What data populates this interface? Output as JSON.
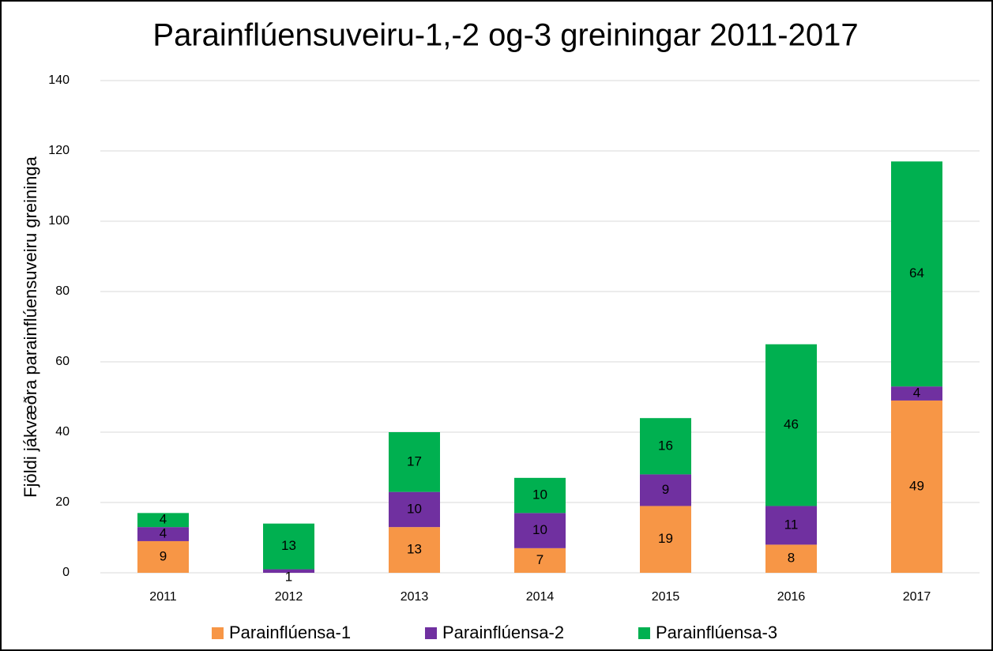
{
  "chart_data": {
    "type": "stacked_bar",
    "title": "Parainflúensuveiru-1,-2 og-3 greiningar 2011-2017",
    "y_label": "Fjöldi jákvæðra parainflúensuveiru greininga",
    "categories": [
      "2011",
      "2012",
      "2013",
      "2014",
      "2015",
      "2016",
      "2017"
    ],
    "series": [
      {
        "name": "Parainflúensa-1",
        "color": "#f79646",
        "values": [
          9,
          null,
          13,
          7,
          19,
          8,
          49
        ]
      },
      {
        "name": "Parainflúensa-2",
        "color": "#7030a0",
        "values": [
          4,
          1,
          10,
          10,
          9,
          11,
          4
        ]
      },
      {
        "name": "Parainflúensa-3",
        "color": "#00b050",
        "values": [
          4,
          13,
          17,
          10,
          16,
          46,
          64
        ]
      }
    ],
    "ylim": [
      0,
      140
    ],
    "yticks": [
      0,
      20,
      40,
      60,
      80,
      100,
      120,
      140
    ],
    "grid": true,
    "legend": "bottom"
  }
}
